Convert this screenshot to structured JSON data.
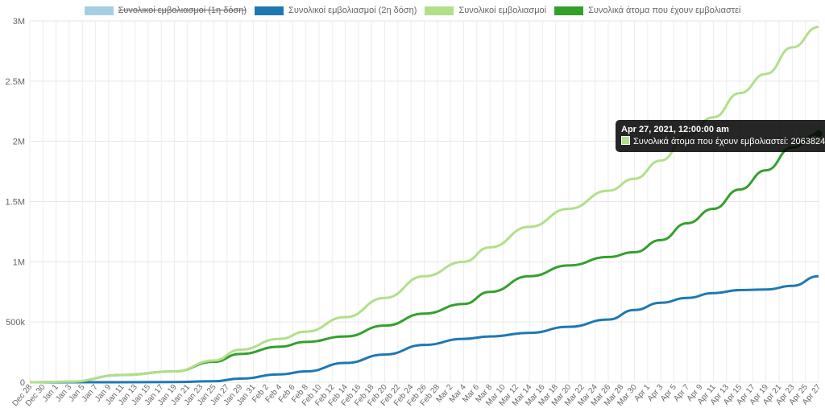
{
  "legend": [
    {
      "label": "Συνολικοί εμβολιασμοί (1η δόση)",
      "color": "#a6cee3",
      "hidden": true
    },
    {
      "label": "Συνολικοί εμβολιασμοί (2η δόση)",
      "color": "#1f78b4",
      "hidden": false
    },
    {
      "label": "Συνολικοί εμβολιασμοί",
      "color": "#b2df8a",
      "hidden": false
    },
    {
      "label": "Συνολικά άτομα που έχουν εμβολιαστεί",
      "color": "#33a02c",
      "hidden": false
    }
  ],
  "tooltip": {
    "title": "Apr 27, 2021, 12:00:00 am",
    "text": "Συνολικά άτομα που έχουν εμβολιαστεί: 2063824",
    "color": "#b2df8a"
  },
  "chart_data": {
    "type": "line",
    "ylim": [
      0,
      3000000
    ],
    "yticks": [
      "0",
      "500k",
      "1M",
      "1.5M",
      "2M",
      "2.5M",
      "3M"
    ],
    "xticks": [
      "Dec 28",
      "Dec 30",
      "Jan 1",
      "Jan 3",
      "Jan 5",
      "Jan 7",
      "Jan 9",
      "Jan 11",
      "Jan 13",
      "Jan 15",
      "Jan 17",
      "Jan 19",
      "Jan 21",
      "Jan 23",
      "Jan 25",
      "Jan 27",
      "Jan 29",
      "Jan 31",
      "Feb 2",
      "Feb 4",
      "Feb 6",
      "Feb 8",
      "Feb 10",
      "Feb 12",
      "Feb 14",
      "Feb 16",
      "Feb 18",
      "Feb 20",
      "Feb 22",
      "Feb 24",
      "Feb 26",
      "Feb 28",
      "Mar 2",
      "Mar 4",
      "Mar 6",
      "Mar 8",
      "Mar 10",
      "Mar 12",
      "Mar 14",
      "Mar 16",
      "Mar 18",
      "Mar 20",
      "Mar 22",
      "Mar 24",
      "Mar 26",
      "Mar 28",
      "Mar 30",
      "Apr 1",
      "Apr 3",
      "Apr 5",
      "Apr 7",
      "Apr 9",
      "Apr 11",
      "Apr 13",
      "Apr 15",
      "Apr 17",
      "Apr 19",
      "Apr 21",
      "Apr 23",
      "Apr 25",
      "Apr 27"
    ],
    "x": [
      "Dec 28",
      "Jan 3",
      "Jan 11",
      "Jan 19",
      "Jan 25",
      "Jan 29",
      "Feb 4",
      "Feb 8",
      "Feb 14",
      "Feb 20",
      "Feb 26",
      "Mar 4",
      "Mar 8",
      "Mar 14",
      "Mar 20",
      "Mar 26",
      "Mar 30",
      "Apr 3",
      "Apr 7",
      "Apr 11",
      "Apr 15",
      "Apr 19",
      "Apr 23",
      "Apr 27"
    ],
    "series": [
      {
        "name": "Συνολικοί εμβολιασμοί (2η δόση)",
        "color": "#1f78b4",
        "values": [
          0,
          0,
          0,
          2000,
          8000,
          30000,
          65000,
          90000,
          160000,
          230000,
          310000,
          360000,
          380000,
          410000,
          460000,
          520000,
          600000,
          660000,
          700000,
          740000,
          765000,
          770000,
          800000,
          880000
        ]
      },
      {
        "name": "Συνολικοί εμβολιασμοί",
        "color": "#b2df8a",
        "values": [
          0,
          5000,
          60000,
          90000,
          180000,
          270000,
          360000,
          420000,
          540000,
          700000,
          880000,
          1000000,
          1120000,
          1290000,
          1440000,
          1590000,
          1690000,
          1840000,
          2050000,
          2200000,
          2400000,
          2560000,
          2780000,
          2950000
        ]
      },
      {
        "name": "Συνολικά άτομα που έχουν εμβολιαστεί",
        "color": "#33a02c",
        "values": [
          0,
          4000,
          60000,
          90000,
          170000,
          235000,
          295000,
          335000,
          380000,
          470000,
          570000,
          650000,
          750000,
          880000,
          970000,
          1040000,
          1080000,
          1180000,
          1320000,
          1440000,
          1600000,
          1760000,
          1950000,
          2063824
        ]
      }
    ]
  }
}
